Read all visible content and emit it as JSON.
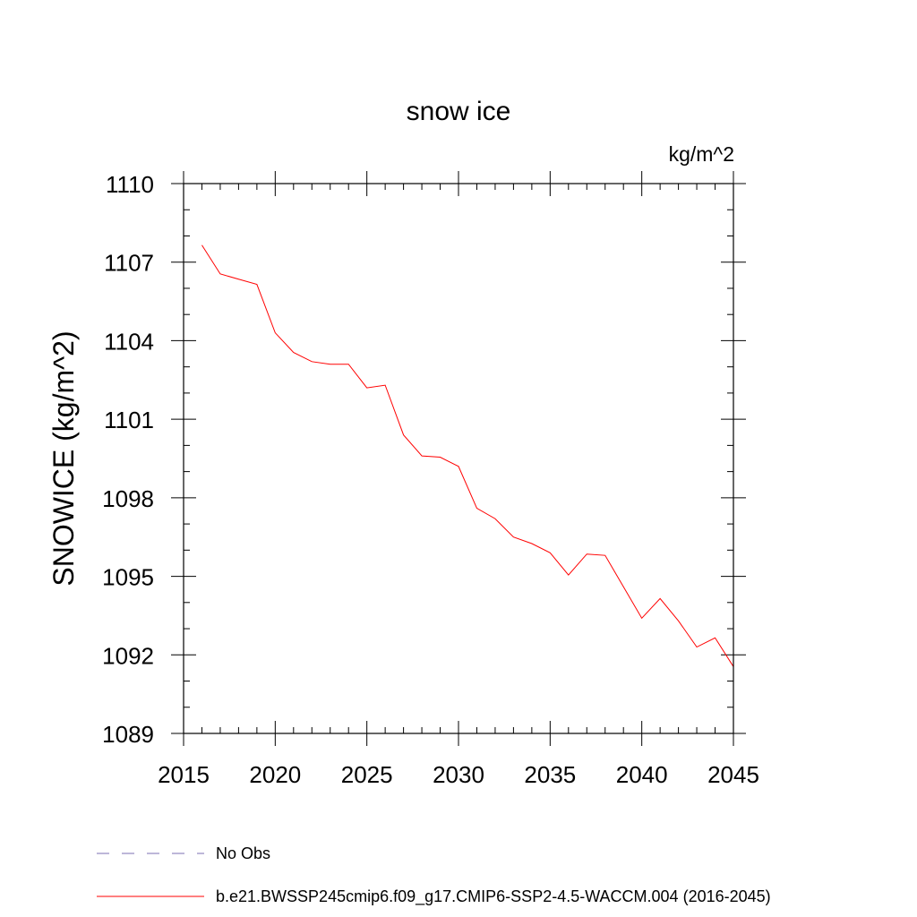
{
  "chart_data": {
    "type": "line",
    "title": "snow ice",
    "units": "kg/m^2",
    "ylabel": "SNOWICE  (kg/m^2)",
    "xlabel": "",
    "xlim": [
      2015,
      2045
    ],
    "ylim": [
      1089,
      1110
    ],
    "xticks": [
      "2015",
      "2020",
      "2025",
      "2030",
      "2035",
      "2040",
      "2045"
    ],
    "yticks": [
      "1089",
      "1092",
      "1095",
      "1098",
      "1101",
      "1104",
      "1107",
      "1110"
    ],
    "grid": false,
    "series": [
      {
        "name": "b.e21.BWSSP245cmip6.f09_g17.CMIP6-SSP2-4.5-WACCM.004 (2016-2045)",
        "color": "#ff0000",
        "style": "solid",
        "x": [
          2016,
          2017,
          2018,
          2019,
          2020,
          2021,
          2022,
          2023,
          2024,
          2025,
          2026,
          2027,
          2028,
          2029,
          2030,
          2031,
          2032,
          2033,
          2034,
          2035,
          2036,
          2037,
          2038,
          2039,
          2040,
          2041,
          2042,
          2043,
          2044,
          2045
        ],
        "values": [
          1107.65,
          1106.55,
          1106.35,
          1106.15,
          1104.3,
          1103.55,
          1103.2,
          1103.1,
          1103.1,
          1102.2,
          1102.3,
          1100.4,
          1099.6,
          1099.55,
          1099.2,
          1097.6,
          1097.2,
          1096.5,
          1096.25,
          1095.9,
          1095.05,
          1095.85,
          1095.8,
          1094.6,
          1093.4,
          1094.15,
          1093.3,
          1092.3,
          1092.65,
          1091.55
        ]
      }
    ],
    "legend": {
      "placement": "bottom",
      "entries": [
        {
          "label": "No Obs",
          "color": "#7b6fb3",
          "style": "dashed"
        },
        {
          "label": "b.e21.BWSSP245cmip6.f09_g17.CMIP6-SSP2-4.5-WACCM.004 (2016-2045)",
          "color": "#ff0000",
          "style": "solid"
        }
      ]
    }
  }
}
